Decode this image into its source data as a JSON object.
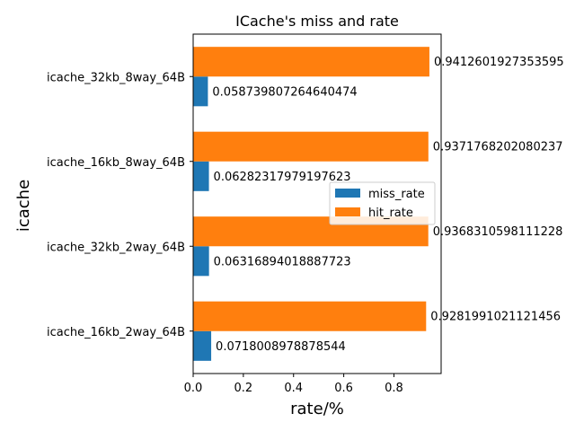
{
  "chart_data": {
    "type": "bar",
    "orientation": "horizontal",
    "title": "ICache's miss and rate",
    "xlabel": "rate/%",
    "ylabel": "icache",
    "xlim": [
      0,
      0.988
    ],
    "x_ticks": [
      0.0,
      0.2,
      0.4,
      0.6,
      0.8
    ],
    "x_tick_labels": [
      "0.0",
      "0.2",
      "0.4",
      "0.6",
      "0.8"
    ],
    "categories": [
      "icache_16kb_2way_64B",
      "icache_32kb_2way_64B",
      "icache_16kb_8way_64B",
      "icache_32kb_8way_64B"
    ],
    "series": [
      {
        "name": "miss_rate",
        "color": "#1f77b4",
        "values": [
          0.0718008978878544,
          0.06316894018887723,
          0.06282317979197623,
          0.058739807264640474
        ],
        "labels": [
          "0.0718008978878544",
          "0.06316894018887723",
          "0.06282317979197623",
          "0.058739807264640474"
        ]
      },
      {
        "name": "hit_rate",
        "color": "#ff7f0e",
        "values": [
          0.9281991021121456,
          0.9368310598111228,
          0.9371768202080237,
          0.9412601927353595
        ],
        "labels": [
          "0.9281991021121456",
          "0.9368310598111228",
          "0.9371768202080237",
          "0.9412601927353595"
        ]
      }
    ],
    "grid": false,
    "legend_position": "center-right"
  }
}
